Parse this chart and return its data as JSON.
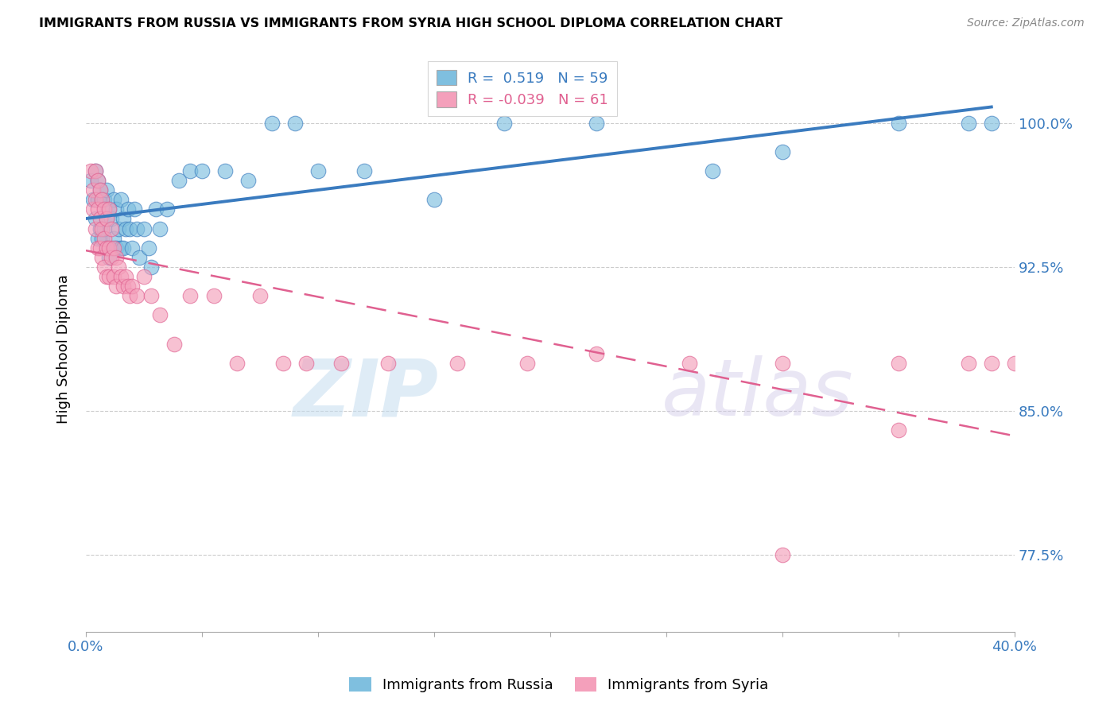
{
  "title": "IMMIGRANTS FROM RUSSIA VS IMMIGRANTS FROM SYRIA HIGH SCHOOL DIPLOMA CORRELATION CHART",
  "source": "Source: ZipAtlas.com",
  "ylabel": "High School Diploma",
  "yticks": [
    "77.5%",
    "85.0%",
    "92.5%",
    "100.0%"
  ],
  "ytick_vals": [
    0.775,
    0.85,
    0.925,
    1.0
  ],
  "xlim": [
    0.0,
    0.4
  ],
  "ylim": [
    0.735,
    1.03
  ],
  "legend_russia": "Immigrants from Russia",
  "legend_syria": "Immigrants from Syria",
  "R_russia": 0.519,
  "N_russia": 59,
  "R_syria": -0.039,
  "N_syria": 61,
  "color_russia": "#7fbfdf",
  "color_syria": "#f4a0bb",
  "color_russia_line": "#3a7bbf",
  "color_syria_line": "#e06090",
  "watermark_zip": "ZIP",
  "watermark_atlas": "atlas",
  "russia_x": [
    0.002,
    0.003,
    0.004,
    0.004,
    0.005,
    0.005,
    0.005,
    0.006,
    0.006,
    0.007,
    0.007,
    0.008,
    0.008,
    0.009,
    0.009,
    0.009,
    0.01,
    0.01,
    0.011,
    0.011,
    0.012,
    0.012,
    0.013,
    0.013,
    0.014,
    0.015,
    0.015,
    0.016,
    0.016,
    0.017,
    0.018,
    0.019,
    0.02,
    0.021,
    0.022,
    0.023,
    0.025,
    0.027,
    0.028,
    0.03,
    0.032,
    0.035,
    0.04,
    0.045,
    0.05,
    0.06,
    0.07,
    0.08,
    0.09,
    0.1,
    0.12,
    0.15,
    0.18,
    0.22,
    0.27,
    0.3,
    0.35,
    0.38,
    0.39
  ],
  "russia_y": [
    0.97,
    0.96,
    0.975,
    0.95,
    0.97,
    0.96,
    0.94,
    0.965,
    0.945,
    0.96,
    0.94,
    0.96,
    0.945,
    0.965,
    0.95,
    0.935,
    0.955,
    0.93,
    0.95,
    0.935,
    0.96,
    0.94,
    0.955,
    0.935,
    0.945,
    0.96,
    0.935,
    0.95,
    0.935,
    0.945,
    0.955,
    0.945,
    0.935,
    0.955,
    0.945,
    0.93,
    0.945,
    0.935,
    0.925,
    0.955,
    0.945,
    0.955,
    0.97,
    0.975,
    0.975,
    0.975,
    0.97,
    1.0,
    1.0,
    0.975,
    0.975,
    0.96,
    1.0,
    1.0,
    0.975,
    0.985,
    1.0,
    1.0,
    1.0
  ],
  "syria_x": [
    0.002,
    0.003,
    0.003,
    0.004,
    0.004,
    0.004,
    0.005,
    0.005,
    0.005,
    0.006,
    0.006,
    0.006,
    0.007,
    0.007,
    0.007,
    0.008,
    0.008,
    0.008,
    0.009,
    0.009,
    0.009,
    0.01,
    0.01,
    0.01,
    0.011,
    0.011,
    0.012,
    0.012,
    0.013,
    0.013,
    0.014,
    0.015,
    0.016,
    0.017,
    0.018,
    0.019,
    0.02,
    0.022,
    0.025,
    0.028,
    0.032,
    0.038,
    0.045,
    0.055,
    0.065,
    0.075,
    0.085,
    0.095,
    0.11,
    0.13,
    0.16,
    0.19,
    0.22,
    0.26,
    0.3,
    0.35,
    0.38,
    0.39,
    0.4,
    0.35,
    0.3
  ],
  "syria_y": [
    0.975,
    0.965,
    0.955,
    0.975,
    0.96,
    0.945,
    0.97,
    0.955,
    0.935,
    0.965,
    0.95,
    0.935,
    0.96,
    0.945,
    0.93,
    0.955,
    0.94,
    0.925,
    0.95,
    0.935,
    0.92,
    0.955,
    0.935,
    0.92,
    0.945,
    0.93,
    0.935,
    0.92,
    0.93,
    0.915,
    0.925,
    0.92,
    0.915,
    0.92,
    0.915,
    0.91,
    0.915,
    0.91,
    0.92,
    0.91,
    0.9,
    0.885,
    0.91,
    0.91,
    0.875,
    0.91,
    0.875,
    0.875,
    0.875,
    0.875,
    0.875,
    0.875,
    0.88,
    0.875,
    0.875,
    0.875,
    0.875,
    0.875,
    0.875,
    0.84,
    0.775
  ]
}
